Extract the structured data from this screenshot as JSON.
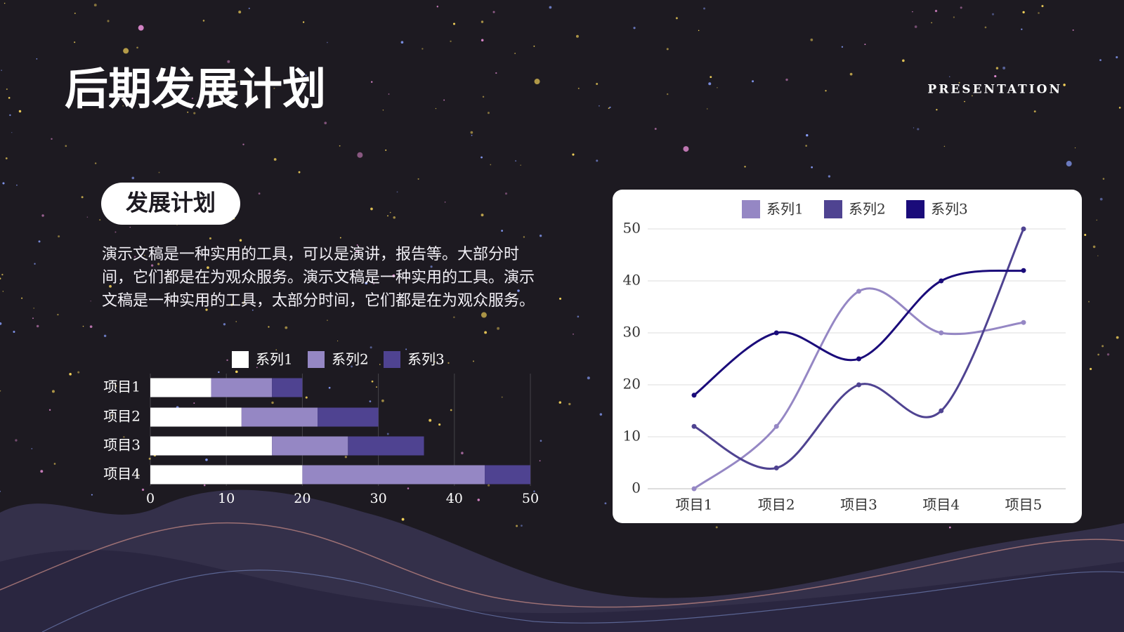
{
  "header": {
    "title": "后期发展计划",
    "tag": "PRESENTATION"
  },
  "section": {
    "label": "发展计划",
    "body": "演示文稿是一种实用的工具，可以是演讲，报告等。大部分时间，它们都是在为观众服务。演示文稿是一种实用的工具。演示文稿是一种实用的工具，太部分时间，它们都是在为观众服务。"
  },
  "chart_data": [
    {
      "type": "bar",
      "orientation": "horizontal",
      "stacked": true,
      "categories": [
        "项目1",
        "项目2",
        "项目3",
        "项目4"
      ],
      "series": [
        {
          "name": "系列1",
          "color": "#ffffff",
          "values": [
            8,
            12,
            16,
            20
          ]
        },
        {
          "name": "系列2",
          "color": "#9587c4",
          "values": [
            8,
            10,
            10,
            24
          ]
        },
        {
          "name": "系列3",
          "color": "#4f4391",
          "values": [
            4,
            8,
            10,
            6
          ]
        }
      ],
      "xlim": [
        0,
        50
      ],
      "xticks": [
        0,
        10,
        20,
        30,
        40,
        50
      ],
      "grid": true,
      "legend": "top"
    },
    {
      "type": "line",
      "smooth": true,
      "categories": [
        "项目1",
        "项目2",
        "项目3",
        "项目4",
        "项目5"
      ],
      "series": [
        {
          "name": "系列1",
          "color": "#9587c4",
          "values": [
            0,
            12,
            38,
            30,
            32
          ]
        },
        {
          "name": "系列2",
          "color": "#4f4391",
          "values": [
            12,
            4,
            20,
            15,
            50
          ]
        },
        {
          "name": "系列3",
          "color": "#1a0b7a",
          "values": [
            18,
            30,
            25,
            40,
            42
          ]
        }
      ],
      "ylim": [
        0,
        50
      ],
      "yticks": [
        0,
        10,
        20,
        30,
        40,
        50
      ],
      "grid": true,
      "legend": "top"
    }
  ]
}
